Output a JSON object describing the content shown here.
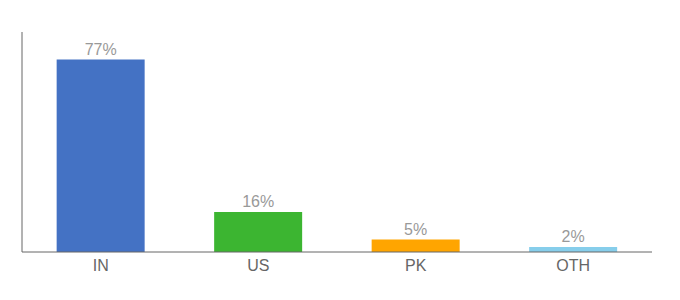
{
  "chart_data": {
    "type": "bar",
    "categories": [
      "IN",
      "US",
      "PK",
      "OTH"
    ],
    "values": [
      77,
      16,
      5,
      2
    ],
    "value_labels": [
      "77%",
      "16%",
      "5%",
      "2%"
    ],
    "colors": [
      "#4472C4",
      "#3CB531",
      "#FFA500",
      "#87CEEB"
    ],
    "ylim": [
      0,
      88
    ],
    "data_labels": true,
    "tick_labels": "x",
    "grid": false
  }
}
